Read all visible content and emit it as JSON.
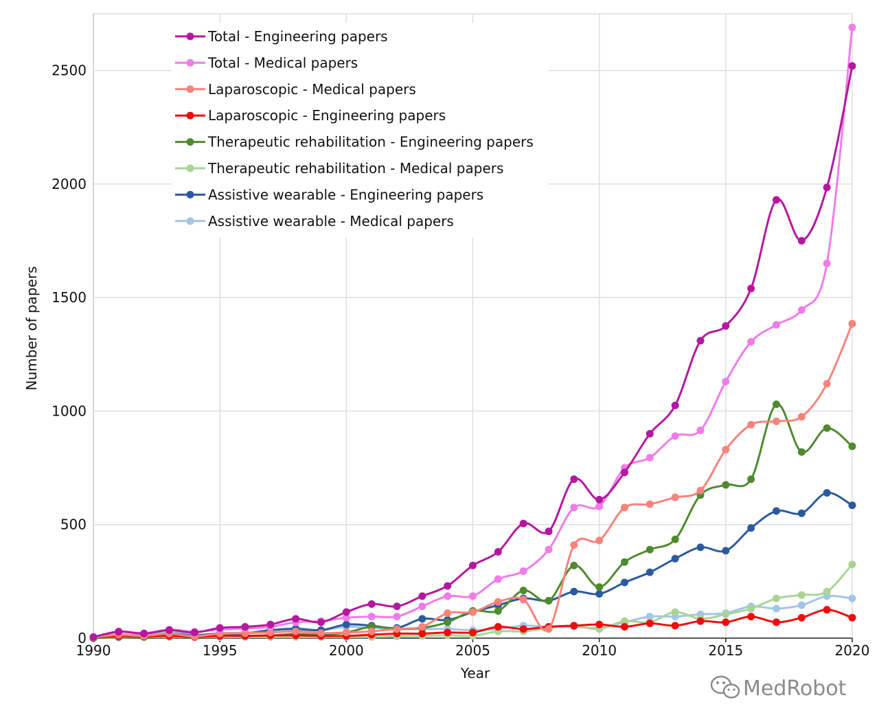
{
  "chart_data": {
    "type": "line",
    "title": "",
    "xlabel": "Year",
    "ylabel": "Number of papers",
    "xlim": [
      1990,
      2020
    ],
    "ylim": [
      0,
      2750
    ],
    "xticks": [
      1990,
      1995,
      2000,
      2005,
      2010,
      2015,
      2020
    ],
    "yticks": [
      0,
      500,
      1000,
      1500,
      2000,
      2500
    ],
    "grid": true,
    "legend_position": "top-left",
    "x": [
      1990,
      1991,
      1992,
      1993,
      1994,
      1995,
      1996,
      1997,
      1998,
      1999,
      2000,
      2001,
      2002,
      2003,
      2004,
      2005,
      2006,
      2007,
      2008,
      2009,
      2010,
      2011,
      2012,
      2013,
      2014,
      2015,
      2016,
      2017,
      2018,
      2019,
      2020
    ],
    "series": [
      {
        "name": "Total - Engineering papers",
        "color": "#b5179e",
        "values": [
          5,
          28,
          20,
          35,
          25,
          45,
          50,
          60,
          85,
          70,
          115,
          150,
          140,
          185,
          230,
          320,
          380,
          505,
          470,
          700,
          610,
          730,
          900,
          1025,
          1310,
          1375,
          1540,
          1930,
          1750,
          1985,
          2520
        ]
      },
      {
        "name": "Total - Medical papers",
        "color": "#f07ce8",
        "values": [
          5,
          30,
          22,
          38,
          28,
          38,
          42,
          50,
          70,
          75,
          90,
          95,
          95,
          140,
          185,
          185,
          260,
          295,
          390,
          575,
          580,
          750,
          795,
          890,
          915,
          1130,
          1305,
          1380,
          1445,
          1650,
          2690
        ]
      },
      {
        "name": "Laparoscopic - Medical papers",
        "color": "#f7837b",
        "values": [
          3,
          15,
          10,
          20,
          8,
          20,
          22,
          25,
          30,
          22,
          25,
          30,
          40,
          50,
          110,
          115,
          160,
          170,
          40,
          410,
          430,
          575,
          590,
          620,
          650,
          830,
          940,
          955,
          975,
          1120,
          1385
        ]
      },
      {
        "name": "Laparoscopic - Engineering papers",
        "color": "#ee0d0d",
        "values": [
          2,
          10,
          8,
          10,
          5,
          10,
          10,
          12,
          12,
          10,
          10,
          15,
          20,
          20,
          25,
          25,
          50,
          40,
          50,
          55,
          60,
          50,
          65,
          55,
          75,
          70,
          95,
          70,
          90,
          125,
          90
        ]
      },
      {
        "name": "Therapeutic rehabilitation - Engineering papers",
        "color": "#4f8a2e",
        "values": [
          0,
          5,
          5,
          10,
          8,
          12,
          10,
          12,
          18,
          15,
          25,
          50,
          40,
          45,
          70,
          120,
          120,
          210,
          165,
          320,
          225,
          335,
          390,
          435,
          630,
          675,
          700,
          1030,
          820,
          925,
          845
        ]
      },
      {
        "name": "Therapeutic rehabilitation - Medical papers",
        "color": "#a9d495",
        "values": [
          0,
          3,
          5,
          5,
          5,
          5,
          5,
          5,
          5,
          5,
          5,
          5,
          8,
          10,
          12,
          10,
          30,
          30,
          45,
          55,
          40,
          75,
          70,
          115,
          85,
          105,
          130,
          175,
          190,
          205,
          325
        ]
      },
      {
        "name": "Assistive wearable - Engineering papers",
        "color": "#2b5a9e",
        "values": [
          2,
          15,
          10,
          20,
          12,
          20,
          20,
          35,
          40,
          35,
          60,
          55,
          45,
          85,
          80,
          115,
          145,
          175,
          165,
          205,
          195,
          245,
          290,
          350,
          400,
          385,
          485,
          560,
          550,
          640,
          585
        ]
      },
      {
        "name": "Assistive wearable - Medical papers",
        "color": "#a3c5e8",
        "values": [
          2,
          15,
          12,
          25,
          15,
          22,
          25,
          35,
          45,
          35,
          50,
          45,
          40,
          40,
          40,
          35,
          40,
          55,
          50,
          50,
          45,
          70,
          95,
          95,
          105,
          110,
          140,
          130,
          145,
          185,
          175
        ]
      }
    ],
    "watermark": "MedRobot"
  }
}
